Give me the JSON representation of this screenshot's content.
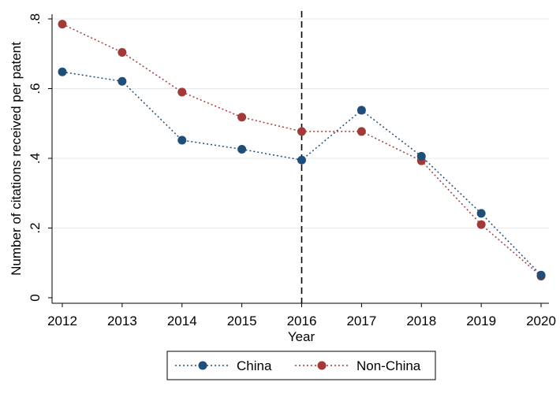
{
  "chart_data": {
    "type": "line",
    "title": "",
    "xlabel": "Year",
    "ylabel": "Number of citations received per patent",
    "x": [
      2012,
      2013,
      2014,
      2015,
      2016,
      2017,
      2018,
      2019,
      2020
    ],
    "x_tick_labels": [
      "2012",
      "2013",
      "2014",
      "2015",
      "2016",
      "2017",
      "2018",
      "2019",
      "2020"
    ],
    "y_ticks": [
      0,
      0.2,
      0.4,
      0.6,
      0.8
    ],
    "y_tick_labels": [
      "0",
      ".2",
      ".4",
      ".6",
      ".8"
    ],
    "ylim": [
      0,
      0.8
    ],
    "xlim": [
      2012,
      2020
    ],
    "grid": true,
    "vertical_reference_line": 2016,
    "legend_position": "bottom",
    "series": [
      {
        "name": "China",
        "color": "#1f4e79",
        "line_style": "dotted",
        "values": [
          0.648,
          0.621,
          0.452,
          0.426,
          0.395,
          0.538,
          0.406,
          0.242,
          0.065
        ]
      },
      {
        "name": "Non-China",
        "color": "#a33a3a",
        "line_style": "dotted",
        "values": [
          0.785,
          0.704,
          0.59,
          0.518,
          0.477,
          0.477,
          0.393,
          0.21,
          0.062
        ]
      }
    ]
  }
}
